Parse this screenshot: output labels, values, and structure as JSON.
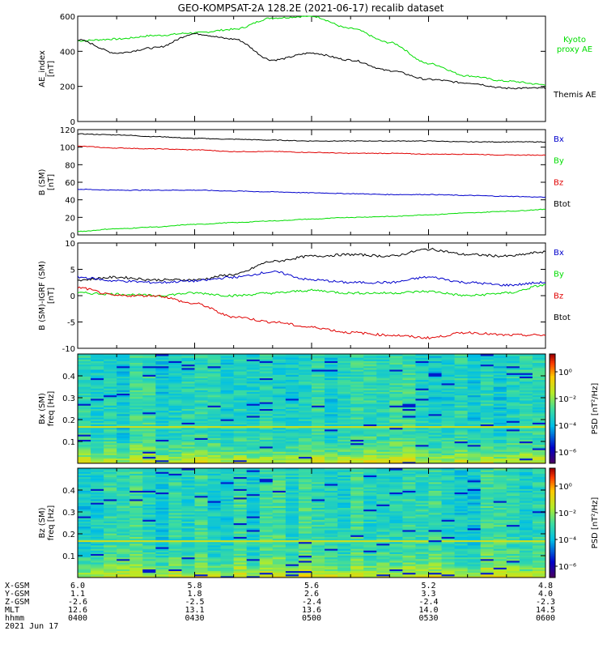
{
  "title": "GEO-KOMPSAT-2A 128.2E (2021-06-17) recalib dataset",
  "colors": {
    "black": "#000000",
    "red": "#e00000",
    "green": "#00dd00",
    "blue": "#0000cc"
  },
  "chart_data": [
    {
      "type": "line",
      "panel": "ae_index",
      "ylabel": [
        "AE_index",
        "[nT]"
      ],
      "ylim": [
        0,
        600
      ],
      "yticks": [
        0,
        200,
        400,
        600
      ],
      "x": [
        "0400",
        "0410",
        "0420",
        "0430",
        "0440",
        "0450",
        "0500",
        "0510",
        "0520",
        "0530",
        "0540",
        "0550",
        "0600"
      ],
      "series": [
        {
          "name": "Kyoto proxy AE",
          "legend": [
            "Kyoto",
            "proxy AE"
          ],
          "color": "#00dd00",
          "values": [
            460,
            470,
            490,
            505,
            525,
            590,
            600,
            530,
            450,
            330,
            260,
            230,
            210
          ]
        },
        {
          "name": "Themis AE",
          "legend": [
            "Themis AE"
          ],
          "color": "#000000",
          "values": [
            465,
            390,
            420,
            500,
            470,
            350,
            390,
            350,
            290,
            240,
            220,
            190,
            190
          ]
        }
      ]
    },
    {
      "type": "line",
      "panel": "b_sm",
      "ylabel": [
        "B (SM)",
        "[nT]"
      ],
      "ylim": [
        0,
        120
      ],
      "yticks": [
        0,
        20,
        40,
        60,
        80,
        100,
        120
      ],
      "legend": [
        {
          "name": "Bx",
          "color": "#0000cc"
        },
        {
          "name": "By",
          "color": "#00dd00"
        },
        {
          "name": "Bz",
          "color": "#e00000"
        },
        {
          "name": "Btot",
          "color": "#000000"
        }
      ],
      "series": [
        {
          "name": "Btot",
          "color": "#000000",
          "values": [
            115,
            114,
            112,
            110,
            109,
            108,
            107,
            107,
            107,
            107,
            106,
            106,
            106
          ]
        },
        {
          "name": "Bz",
          "color": "#e00000",
          "values": [
            101,
            99,
            98,
            97,
            95,
            95,
            94,
            93,
            93,
            92,
            92,
            91,
            91
          ]
        },
        {
          "name": "Bx",
          "color": "#0000cc",
          "values": [
            52,
            51,
            51,
            51,
            50,
            49,
            48,
            47,
            46,
            46,
            45,
            44,
            43
          ]
        },
        {
          "name": "By",
          "color": "#00dd00",
          "values": [
            4,
            7,
            9,
            12,
            14,
            16,
            18,
            20,
            21,
            23,
            25,
            27,
            29
          ]
        }
      ]
    },
    {
      "type": "line",
      "panel": "b_minus_igrf",
      "ylabel": [
        "B (SM)-IGRF (SM)",
        "[nT]"
      ],
      "ylim": [
        -10,
        10
      ],
      "yticks": [
        -10,
        -5,
        0,
        5,
        10
      ],
      "legend": [
        {
          "name": "Bx",
          "color": "#0000cc"
        },
        {
          "name": "By",
          "color": "#00dd00"
        },
        {
          "name": "Bz",
          "color": "#e00000"
        },
        {
          "name": "Btot",
          "color": "#000000"
        }
      ],
      "series": [
        {
          "name": "Btot",
          "color": "#000000",
          "values": [
            3.0,
            3.5,
            3.0,
            3.0,
            4.0,
            6.5,
            7.5,
            7.8,
            7.5,
            8.8,
            7.8,
            7.5,
            8.3
          ]
        },
        {
          "name": "Bx",
          "color": "#0000cc",
          "values": [
            3.5,
            2.8,
            2.5,
            2.8,
            3.5,
            4.5,
            3.0,
            2.5,
            2.5,
            3.5,
            2.5,
            2.0,
            2.5
          ]
        },
        {
          "name": "By",
          "color": "#00dd00",
          "values": [
            0.5,
            0.3,
            0.0,
            0.5,
            0.0,
            0.5,
            1.0,
            0.5,
            0.5,
            0.8,
            0.0,
            0.5,
            2.0
          ]
        },
        {
          "name": "Bz",
          "color": "#e00000",
          "values": [
            1.5,
            0.0,
            0.0,
            -1.5,
            -4.0,
            -5.0,
            -6.0,
            -7.0,
            -7.5,
            -8.0,
            -7.0,
            -7.5,
            -7.5
          ]
        }
      ]
    },
    {
      "type": "heatmap",
      "panel": "bx_spectrogram",
      "ylabel": [
        "Bx (SM)",
        "freq [Hz]"
      ],
      "ylim": [
        0,
        0.5
      ],
      "yticks": [
        0.1,
        0.2,
        0.3,
        0.4
      ],
      "colorbar": {
        "label": "PSD [nT²/Hz]",
        "ticks": [
          "10⁰",
          "10⁻²",
          "10⁻⁴",
          "10⁻⁶"
        ]
      }
    },
    {
      "type": "heatmap",
      "panel": "bz_spectrogram",
      "ylabel": [
        "Bz (SM)",
        "freq [Hz]"
      ],
      "ylim": [
        0,
        0.5
      ],
      "yticks": [
        0.1,
        0.2,
        0.3,
        0.4
      ],
      "colorbar": {
        "label": "PSD [nT²/Hz]",
        "ticks": [
          "10⁰",
          "10⁻²",
          "10⁻⁴",
          "10⁻⁶"
        ]
      }
    }
  ],
  "ephemeris": {
    "labels": [
      "X-GSM",
      "Y-GSM",
      "Z-GSM",
      "MLT",
      "hhmm",
      "2021 Jun 17"
    ],
    "columns": [
      [
        "6.0",
        "1.1",
        "-2.6",
        "12.6",
        "0400"
      ],
      [
        "5.8",
        "1.8",
        "-2.5",
        "13.1",
        "0430"
      ],
      [
        "5.6",
        "2.6",
        "-2.4",
        "13.6",
        "0500"
      ],
      [
        "5.2",
        "3.3",
        "-2.4",
        "14.0",
        "0530"
      ],
      [
        "4.8",
        "4.0",
        "-2.3",
        "14.5",
        "0600"
      ]
    ]
  }
}
